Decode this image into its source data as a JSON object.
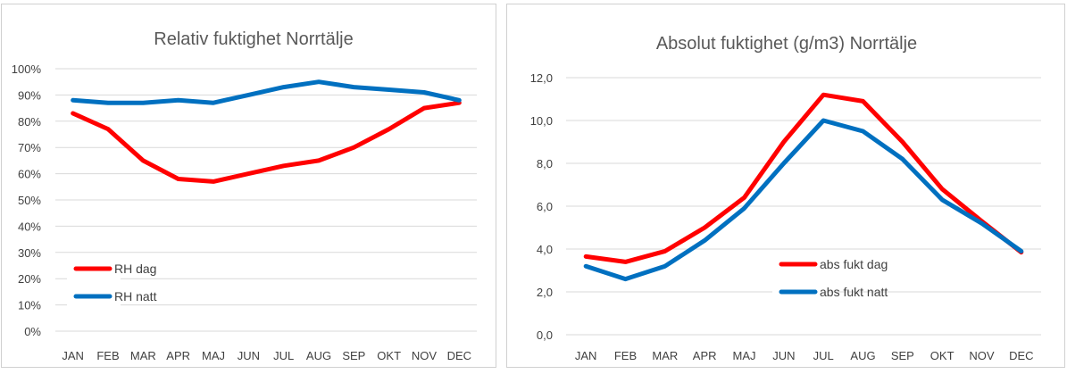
{
  "chart_data": [
    {
      "type": "line",
      "title": "Relativ fuktighet Norrtälje",
      "categories": [
        "JAN",
        "FEB",
        "MAR",
        "APR",
        "MAJ",
        "JUN",
        "JUL",
        "AUG",
        "SEP",
        "OKT",
        "NOV",
        "DEC"
      ],
      "yticks": [
        "0%",
        "10%",
        "20%",
        "30%",
        "40%",
        "50%",
        "60%",
        "70%",
        "80%",
        "90%",
        "100%"
      ],
      "ylim": [
        0,
        100
      ],
      "grid": true,
      "legend_position": "bottom-left",
      "series": [
        {
          "name": "RH dag",
          "color": "#ff0000",
          "values": [
            83,
            77,
            65,
            58,
            57,
            60,
            63,
            65,
            70,
            77,
            85,
            87
          ]
        },
        {
          "name": "RH natt",
          "color": "#0070c0",
          "values": [
            88,
            87,
            87,
            88,
            87,
            90,
            93,
            95,
            93,
            92,
            91,
            88
          ]
        }
      ]
    },
    {
      "type": "line",
      "title": "Absolut fuktighet (g/m3) Norrtälje",
      "categories": [
        "JAN",
        "FEB",
        "MAR",
        "APR",
        "MAJ",
        "JUN",
        "JUL",
        "AUG",
        "SEP",
        "OKT",
        "NOV",
        "DEC"
      ],
      "yticks": [
        "0,0",
        "2,0",
        "4,0",
        "6,0",
        "8,0",
        "10,0",
        "12,0"
      ],
      "ylim": [
        0,
        12
      ],
      "grid": true,
      "legend_position": "bottom-center",
      "series": [
        {
          "name": "abs fukt dag",
          "color": "#ff0000",
          "values": [
            3.65,
            3.4,
            3.9,
            5.0,
            6.4,
            9.0,
            11.2,
            10.9,
            9.0,
            6.8,
            5.3,
            3.85
          ]
        },
        {
          "name": "abs fukt natt",
          "color": "#0070c0",
          "values": [
            3.2,
            2.6,
            3.2,
            4.4,
            5.9,
            8.0,
            10.0,
            9.5,
            8.2,
            6.3,
            5.2,
            3.9
          ]
        }
      ]
    }
  ]
}
